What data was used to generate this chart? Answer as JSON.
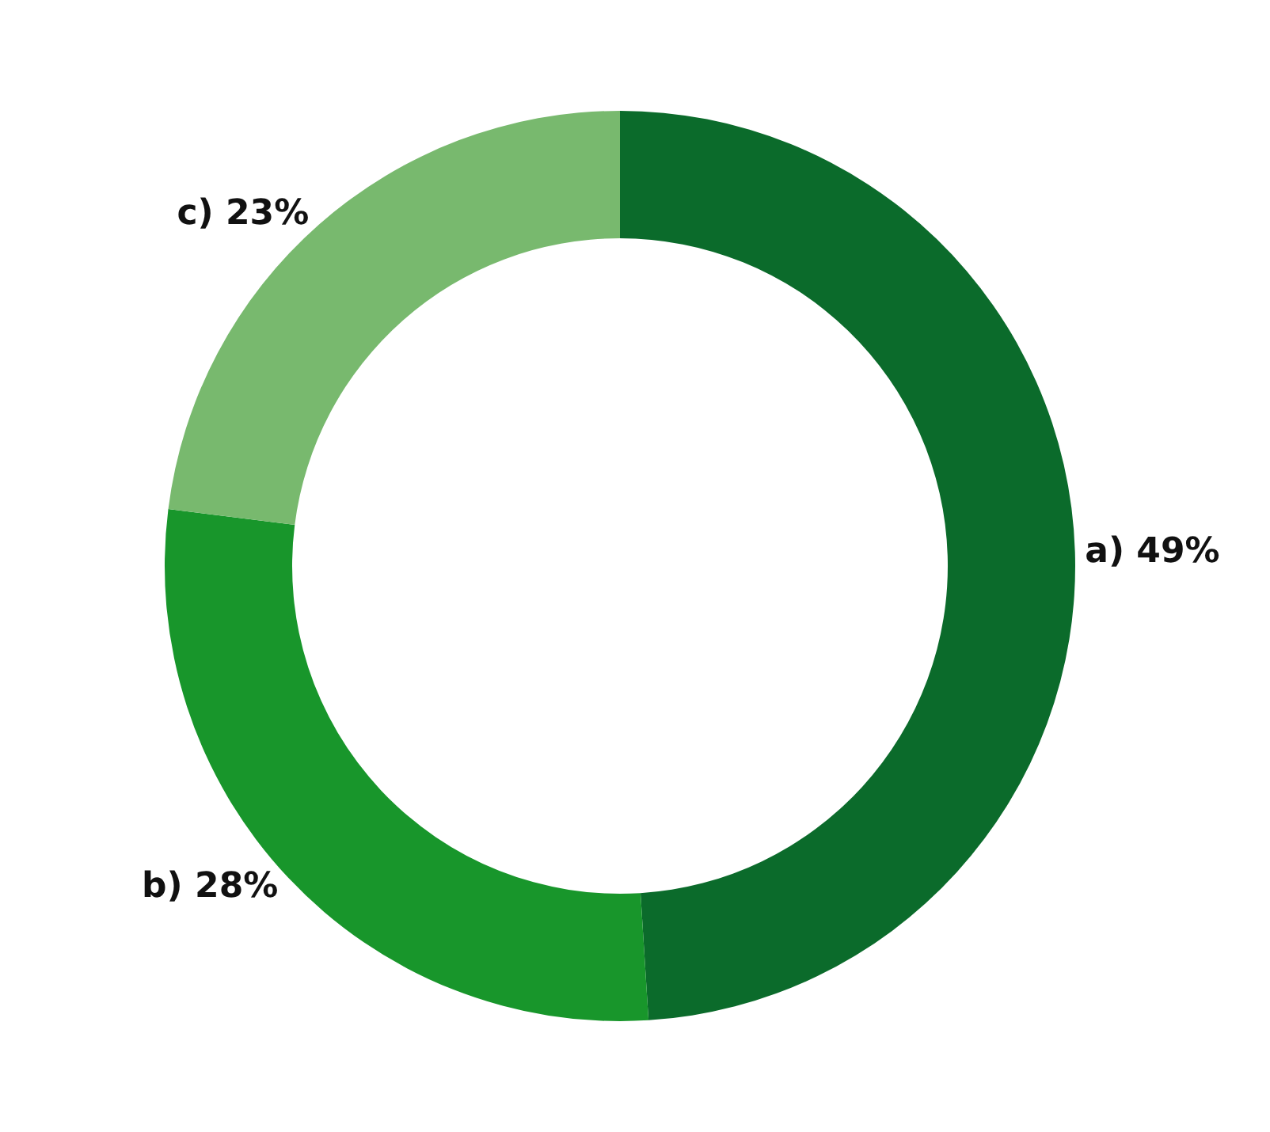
{
  "chart_data": {
    "type": "donut",
    "categories": [
      "a) 49%",
      "b) 28%",
      "c) 23%"
    ],
    "values": [
      49,
      28,
      23
    ],
    "colors": [
      "#0b6b2b",
      "#18962b",
      "#78b96e"
    ],
    "legend": false
  }
}
